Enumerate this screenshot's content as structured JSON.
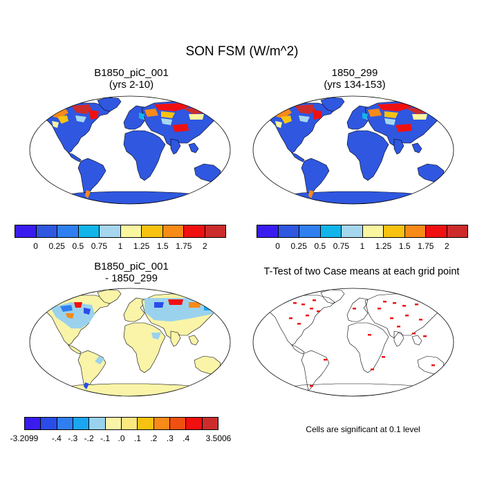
{
  "title": "SON FSM (W/m^2)",
  "panels": [
    {
      "title_line1": "B1850_piC_001",
      "title_line2": "(yrs 2-10)"
    },
    {
      "title_line1": "1850_299",
      "title_line2": "(yrs 134-153)"
    },
    {
      "title_line1": "B1850_piC_001",
      "title_line2": "- 1850_299"
    },
    {
      "title_line1": "T-Test of two Case means at each grid point",
      "title_line2": ""
    }
  ],
  "colorbar_top": {
    "colors": [
      "#3a1cf0",
      "#2f57e0",
      "#2f7ff0",
      "#11b5ea",
      "#a6d7ee",
      "#faf6a0",
      "#f8c310",
      "#f88a18",
      "#f01010",
      "#cc2c2c"
    ],
    "labels": [
      "0",
      "0.25",
      "0.5",
      "0.75",
      "1",
      "1.25",
      "1.5",
      "1.75",
      "2"
    ]
  },
  "colorbar_diff": {
    "colors": [
      "#3a1cf0",
      "#2a4ce8",
      "#2f7ff0",
      "#1aa6f0",
      "#9ad2ee",
      "#faf4a8",
      "#fae880",
      "#f8c310",
      "#f88a18",
      "#f05010",
      "#f01010",
      "#cc2c2c"
    ],
    "labels": [
      "-3.2099",
      "-.4",
      "-.3",
      "-.2",
      "-.1",
      ".0",
      ".1",
      ".2",
      ".3",
      ".4",
      "3.5006"
    ]
  },
  "colors": {
    "ocean": "#ffffff",
    "land_low": "#2f57e0",
    "land_diff_base": "#faf4a8",
    "significant": "#ee1111"
  },
  "significance_note": "Cells are significant at 0.1 level"
}
